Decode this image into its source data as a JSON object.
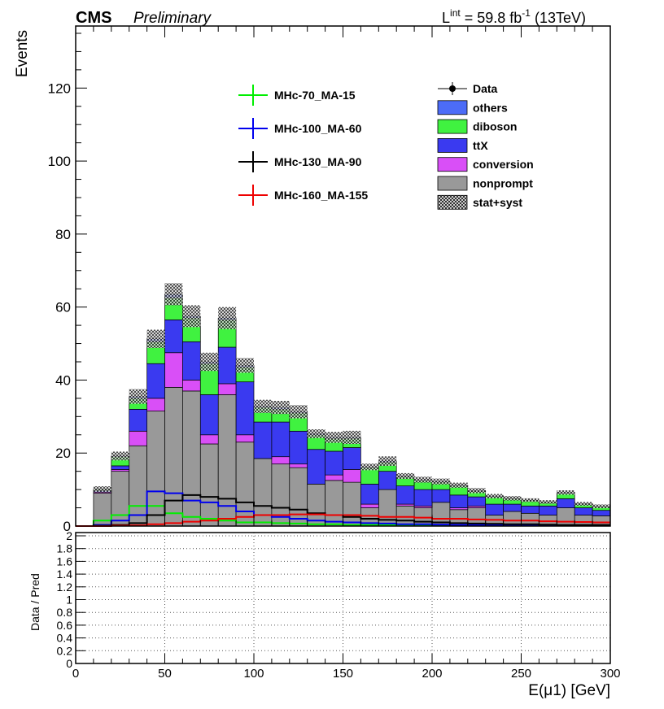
{
  "header": {
    "experiment": "CMS",
    "status": "Preliminary",
    "lumi_prefix": "L",
    "lumi_sup": "int",
    "lumi_mid": " = 59.8 fb",
    "lumi_unit_sup": "-1",
    "lumi_suffix": " (13TeV)"
  },
  "chart_data": [
    {
      "type": "bar",
      "stacked": true,
      "xlabel": "",
      "ylabel": "Events",
      "xlim": [
        0,
        300
      ],
      "ylim": [
        0,
        137
      ],
      "y_ticks": [
        0,
        20,
        40,
        60,
        80,
        100,
        120
      ],
      "bin_edges": [
        0,
        10,
        20,
        30,
        40,
        50,
        60,
        70,
        80,
        90,
        100,
        110,
        120,
        130,
        140,
        150,
        160,
        170,
        180,
        190,
        200,
        210,
        220,
        230,
        240,
        250,
        260,
        270,
        280,
        290,
        300
      ],
      "series": [
        {
          "name": "nonprompt",
          "color": "#999999",
          "values": [
            0,
            9,
            15,
            22,
            31.5,
            38,
            37,
            22.5,
            36,
            23,
            18.5,
            17,
            16,
            11.5,
            12.5,
            12,
            5,
            10,
            5.5,
            5,
            6.5,
            4.5,
            5,
            3,
            4,
            3.5,
            3,
            5,
            3,
            2.8
          ]
        },
        {
          "name": "conversion",
          "color": "#d94ff7",
          "values": [
            0,
            0.3,
            0.5,
            4,
            3.5,
            9.5,
            3,
            2.5,
            3,
            2,
            0,
            2,
            1,
            0,
            1.5,
            3.5,
            1,
            0,
            0.5,
            0.5,
            0,
            0.5,
            0.5,
            0,
            0,
            0,
            0,
            0,
            0,
            0
          ]
        },
        {
          "name": "ttX",
          "color": "#3a3af0",
          "values": [
            0,
            0.4,
            1,
            6,
            9.5,
            9,
            10.5,
            11,
            10,
            14.5,
            10,
            9.5,
            9,
            9.5,
            6.5,
            6,
            5.5,
            5,
            5,
            4.5,
            3.5,
            3.5,
            2.5,
            3,
            2,
            2,
            2.5,
            2.5,
            2,
            1.5
          ]
        },
        {
          "name": "diboson",
          "color": "#40f240",
          "values": [
            0,
            0.3,
            2.5,
            3,
            6,
            6,
            6.5,
            8.5,
            7.5,
            4,
            4,
            3.5,
            5,
            4,
            3.5,
            2.5,
            4.5,
            2.5,
            2.5,
            2.5,
            2,
            2.5,
            1.5,
            2,
            1.5,
            1.5,
            1,
            1.5,
            1,
            1
          ]
        },
        {
          "name": "others",
          "color": "#4c6cf7",
          "values": [
            0,
            0.1,
            0.2,
            0.5,
            0.8,
            1,
            0.5,
            0.5,
            0.5,
            0.5,
            0.3,
            0.5,
            0.3,
            0.3,
            0.3,
            0.3,
            0.2,
            0.3,
            0.2,
            0.2,
            0.2,
            0.2,
            0.2,
            0.2,
            0.1,
            0.1,
            0.1,
            0.2,
            0.1,
            0.1
          ]
        }
      ],
      "uncertainty": {
        "name": "stat+syst",
        "values": [
          0,
          0.8,
          1.2,
          2,
          2.5,
          3,
          3,
          2.5,
          3,
          2,
          1.8,
          1.8,
          1.8,
          1.2,
          1.5,
          1.8,
          0.9,
          1.3,
          0.8,
          0.8,
          0.8,
          0.7,
          0.7,
          0.6,
          0.6,
          0.5,
          0.5,
          0.6,
          0.5,
          0.5
        ]
      },
      "signals": [
        {
          "name": "MHc-70_MA-15",
          "color": "#00ee00",
          "values": [
            0,
            1.5,
            3,
            5.5,
            5.5,
            3.5,
            2.5,
            2,
            1.5,
            1,
            1,
            0.8,
            0.7,
            0.5,
            0.5,
            0.3,
            0.3,
            0.3,
            0.2,
            0.2,
            0.2,
            0.2,
            0.1,
            0.1,
            0.1,
            0.1,
            0.1,
            0.1,
            0.1,
            0.1
          ]
        },
        {
          "name": "MHc-100_MA-60",
          "color": "#0000ee",
          "values": [
            0,
            0.3,
            1.5,
            3,
            9.5,
            9,
            7,
            6.5,
            5.5,
            4,
            3,
            2.5,
            2,
            1.5,
            1.2,
            1,
            0.8,
            0.7,
            0.5,
            0.5,
            0.4,
            0.3,
            0.3,
            0.3,
            0.2,
            0.2,
            0.2,
            0.2,
            0.2,
            0.1
          ]
        },
        {
          "name": "MHc-130_MA-90",
          "color": "#000000",
          "values": [
            0,
            0.1,
            0.3,
            0.8,
            3,
            7,
            8.5,
            8,
            7.5,
            6.5,
            5.5,
            5,
            4.5,
            3.5,
            3,
            2.5,
            2,
            1.7,
            1.5,
            1.2,
            1,
            0.8,
            0.7,
            0.6,
            0.5,
            0.5,
            0.4,
            0.3,
            0.3,
            0.3
          ]
        },
        {
          "name": "MHc-160_MA-155",
          "color": "#ee0000",
          "values": [
            0,
            0,
            0.1,
            0.2,
            0.5,
            0.8,
            1.2,
            1.5,
            2,
            2.5,
            3,
            3,
            3.2,
            3.2,
            3,
            3,
            2.8,
            2.5,
            2.5,
            2.3,
            2,
            2,
            1.8,
            1.7,
            1.5,
            1.5,
            1.3,
            1.2,
            1.1,
            1
          ]
        }
      ],
      "data": {
        "name": "Data",
        "values": []
      }
    },
    {
      "type": "line",
      "xlabel": "E(μ1) [GeV]",
      "ylabel": "Data / Pred",
      "xlim": [
        0,
        300
      ],
      "ylim": [
        0,
        2
      ],
      "x_ticks": [
        0,
        50,
        100,
        150,
        200,
        250,
        300
      ],
      "x_tick_labels": [
        "0",
        "50",
        "100",
        "150",
        "200",
        "250",
        "300"
      ],
      "y_ticks": [
        0,
        0.2,
        0.4,
        0.6,
        0.8,
        1,
        1.2,
        1.4,
        1.6,
        1.8,
        2
      ],
      "y_tick_labels": [
        "0",
        "0.2",
        "0.4",
        "0.6",
        "0.8",
        "1",
        "1.2",
        "1.4",
        "1.6",
        "1.8",
        "2"
      ],
      "grid": true,
      "series": []
    }
  ]
}
